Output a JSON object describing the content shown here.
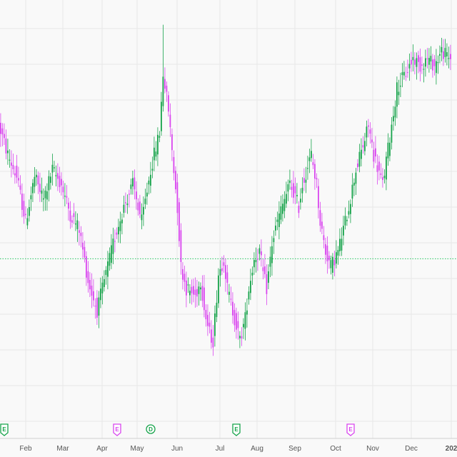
{
  "chart_data": {
    "type": "candlestick",
    "x_labels": [
      "Feb",
      "Mar",
      "Apr",
      "May",
      "Jun",
      "Jul",
      "Aug",
      "Sep",
      "Oct",
      "Nov",
      "Dec",
      "202"
    ],
    "ylim": [
      0,
      100
    ],
    "grid": true,
    "reference_line": {
      "style": "dotted",
      "color": "#22c55e",
      "value": 38
    },
    "colors": {
      "up": "#16a34a",
      "down": "#d946ef",
      "grid": "#e8e8e8"
    },
    "events": [
      {
        "label": "E",
        "color": "#16a34a",
        "month_index": 0
      },
      {
        "label": "E",
        "color": "#d946ef",
        "month_index": 3
      },
      {
        "label": "D",
        "color": "#16a34a",
        "month_index": 4
      },
      {
        "label": "E",
        "color": "#16a34a",
        "month_index": 6
      },
      {
        "label": "E",
        "color": "#d946ef",
        "month_index": 9
      }
    ],
    "anchors": [
      [
        0,
        74
      ],
      [
        5,
        66
      ],
      [
        10,
        60
      ],
      [
        15,
        48
      ],
      [
        20,
        60
      ],
      [
        25,
        54
      ],
      [
        30,
        62
      ],
      [
        35,
        58
      ],
      [
        40,
        50
      ],
      [
        45,
        46
      ],
      [
        50,
        32
      ],
      [
        55,
        24
      ],
      [
        60,
        34
      ],
      [
        65,
        44
      ],
      [
        70,
        52
      ],
      [
        75,
        58
      ],
      [
        80,
        48
      ],
      [
        85,
        62
      ],
      [
        90,
        72
      ],
      [
        92,
        88
      ],
      [
        95,
        78
      ],
      [
        98,
        62
      ],
      [
        100,
        52
      ],
      [
        102,
        36
      ],
      [
        105,
        30
      ],
      [
        110,
        28
      ],
      [
        113,
        32
      ],
      [
        116,
        22
      ],
      [
        118,
        18
      ],
      [
        120,
        16
      ],
      [
        123,
        34
      ],
      [
        126,
        38
      ],
      [
        128,
        30
      ],
      [
        132,
        22
      ],
      [
        135,
        16
      ],
      [
        138,
        22
      ],
      [
        140,
        30
      ],
      [
        143,
        38
      ],
      [
        146,
        40
      ],
      [
        148,
        34
      ],
      [
        150,
        30
      ],
      [
        153,
        42
      ],
      [
        156,
        48
      ],
      [
        160,
        54
      ],
      [
        163,
        58
      ],
      [
        165,
        56
      ],
      [
        168,
        52
      ],
      [
        170,
        58
      ],
      [
        175,
        66
      ],
      [
        178,
        58
      ],
      [
        180,
        48
      ],
      [
        183,
        40
      ],
      [
        186,
        36
      ],
      [
        190,
        40
      ],
      [
        193,
        46
      ],
      [
        196,
        52
      ],
      [
        200,
        62
      ],
      [
        205,
        70
      ],
      [
        207,
        74
      ],
      [
        210,
        66
      ],
      [
        215,
        58
      ],
      [
        220,
        74
      ],
      [
        223,
        84
      ],
      [
        228,
        88
      ],
      [
        232,
        92
      ],
      [
        236,
        90
      ],
      [
        240,
        92
      ],
      [
        244,
        90
      ],
      [
        248,
        94
      ],
      [
        252,
        92
      ]
    ]
  }
}
